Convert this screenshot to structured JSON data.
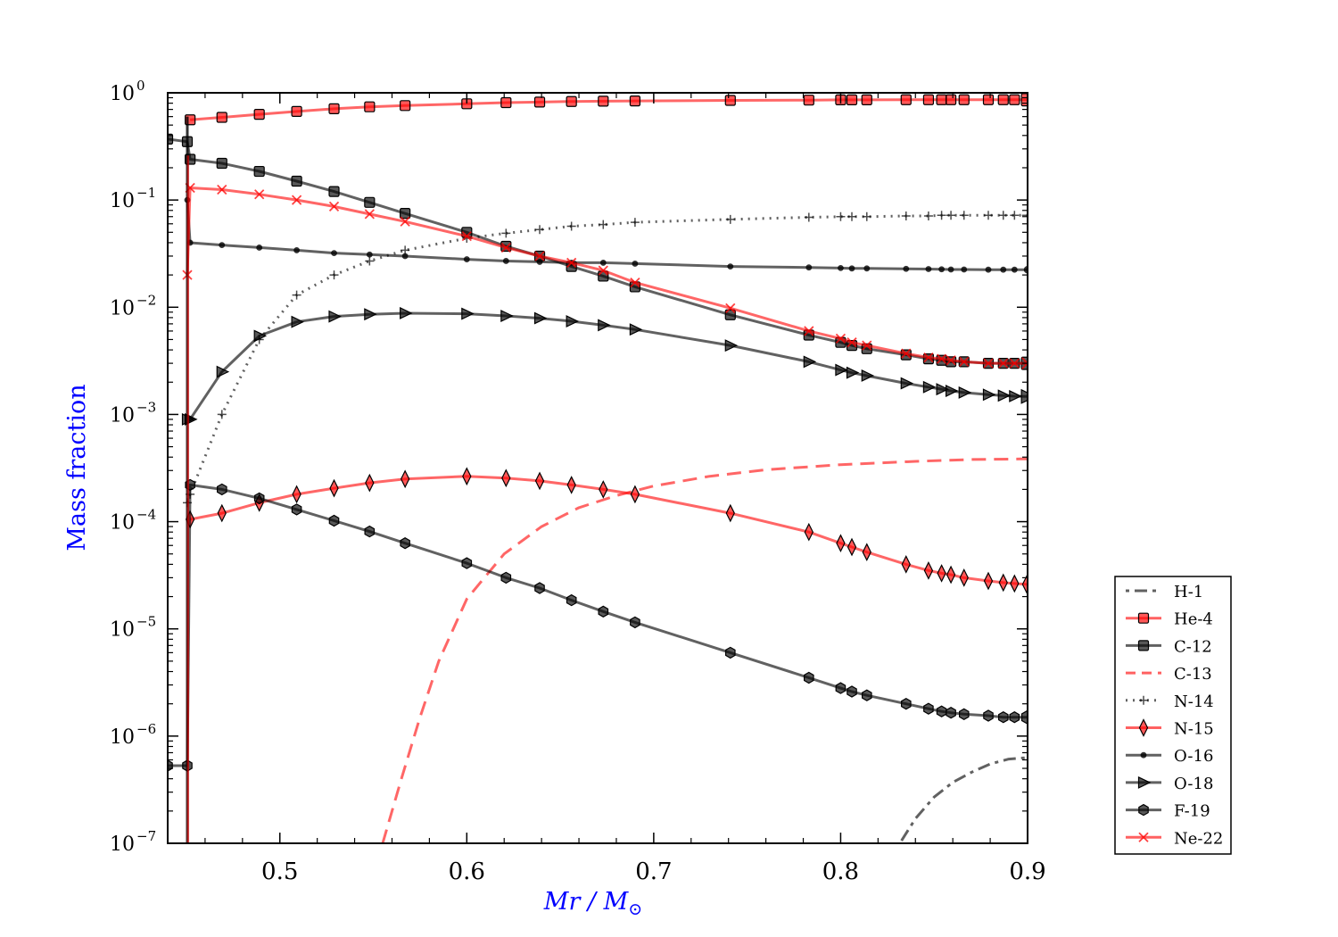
{
  "chart_data": {
    "type": "line",
    "xlabel": "Mr / M",
    "xlabel_sub": "⊙",
    "ylabel": "Mass fraction",
    "xlim": [
      0.44,
      0.9
    ],
    "ylim": [
      1e-07,
      1
    ],
    "yscale": "log",
    "grid": false,
    "legend_position": "outside right, bottom",
    "x_ticks": [
      0.5,
      0.6,
      0.7,
      0.8,
      0.9
    ],
    "x_tick_labels": [
      "0.5",
      "0.6",
      "0.7",
      "0.8",
      "0.9"
    ],
    "y_ticks": [
      1e-07,
      1e-06,
      1e-05,
      0.0001,
      0.001,
      0.01,
      0.1,
      1
    ],
    "y_tick_labels": [
      {
        "base": "10",
        "exp": "−7"
      },
      {
        "base": "10",
        "exp": "−6"
      },
      {
        "base": "10",
        "exp": "−5"
      },
      {
        "base": "10",
        "exp": "−4"
      },
      {
        "base": "10",
        "exp": "−3"
      },
      {
        "base": "10",
        "exp": "−2"
      },
      {
        "base": "10",
        "exp": "−1"
      },
      {
        "base": "10",
        "exp": "0"
      }
    ],
    "colors": {
      "red": "#ff0000",
      "black": "#000000",
      "axis_label": "#0000ff"
    },
    "marker_x": [
      0.4505,
      0.452,
      0.469,
      0.489,
      0.509,
      0.529,
      0.548,
      0.567,
      0.6,
      0.621,
      0.639,
      0.656,
      0.673,
      0.69,
      0.741,
      0.783,
      0.8,
      0.806,
      0.814,
      0.835,
      0.847,
      0.854,
      0.859,
      0.866,
      0.879,
      0.887,
      0.893,
      0.9
    ],
    "series": [
      {
        "name": "H-1",
        "color": "#000000",
        "dash": "4 6 14 6",
        "marker": "none",
        "x": [
          0.83,
          0.84,
          0.85,
          0.86,
          0.87,
          0.88,
          0.89,
          0.9
        ],
        "y": [
          9e-08,
          1.7e-07,
          2.7e-07,
          3.7e-07,
          4.6e-07,
          5.5e-07,
          6.1e-07,
          6.3e-07
        ]
      },
      {
        "name": "He-4",
        "color": "#ff0000",
        "dash": "",
        "marker": "square",
        "x": [
          0.452,
          0.469,
          0.489,
          0.509,
          0.529,
          0.548,
          0.567,
          0.6,
          0.621,
          0.639,
          0.656,
          0.673,
          0.69,
          0.741,
          0.783,
          0.8,
          0.806,
          0.814,
          0.835,
          0.847,
          0.854,
          0.859,
          0.866,
          0.879,
          0.887,
          0.893,
          0.9
        ],
        "y": [
          0.56,
          0.59,
          0.63,
          0.67,
          0.71,
          0.74,
          0.76,
          0.79,
          0.81,
          0.82,
          0.83,
          0.835,
          0.84,
          0.85,
          0.855,
          0.86,
          0.86,
          0.86,
          0.862,
          0.862,
          0.862,
          0.862,
          0.862,
          0.862,
          0.862,
          0.862,
          0.862
        ]
      },
      {
        "name": "C-12",
        "color": "#000000",
        "dash": "",
        "marker": "square",
        "x": [
          0.44,
          0.4505,
          0.452,
          0.469,
          0.489,
          0.509,
          0.529,
          0.548,
          0.567,
          0.6,
          0.621,
          0.639,
          0.656,
          0.673,
          0.69,
          0.741,
          0.783,
          0.8,
          0.806,
          0.814,
          0.835,
          0.847,
          0.854,
          0.859,
          0.866,
          0.879,
          0.887,
          0.893,
          0.9
        ],
        "y": [
          0.37,
          0.35,
          0.24,
          0.22,
          0.185,
          0.15,
          0.12,
          0.095,
          0.075,
          0.05,
          0.037,
          0.03,
          0.024,
          0.0195,
          0.0155,
          0.0085,
          0.0055,
          0.0047,
          0.0044,
          0.0041,
          0.0036,
          0.0033,
          0.0032,
          0.0031,
          0.0031,
          0.003,
          0.003,
          0.003,
          0.003
        ]
      },
      {
        "name": "C-13",
        "color": "#ff0000",
        "dash": "16 9",
        "marker": "none",
        "x": [
          0.555,
          0.565,
          0.575,
          0.585,
          0.6,
          0.62,
          0.64,
          0.66,
          0.68,
          0.7,
          0.73,
          0.76,
          0.8,
          0.84,
          0.87,
          0.9
        ],
        "y": [
          1e-07,
          4e-07,
          1.5e-06,
          5e-06,
          1.9e-05,
          5e-05,
          9e-05,
          0.000135,
          0.000175,
          0.000215,
          0.000265,
          0.000305,
          0.00034,
          0.000365,
          0.00038,
          0.000385
        ]
      },
      {
        "name": "N-14",
        "color": "#000000",
        "dash": "2 6",
        "marker": "plus",
        "x": [
          0.4505,
          0.452,
          0.469,
          0.489,
          0.509,
          0.529,
          0.548,
          0.567,
          0.6,
          0.621,
          0.639,
          0.656,
          0.673,
          0.69,
          0.741,
          0.783,
          0.8,
          0.806,
          0.814,
          0.835,
          0.847,
          0.854,
          0.859,
          0.866,
          0.879,
          0.887,
          0.893,
          0.9
        ],
        "y": [
          0.00015,
          0.00018,
          0.001,
          0.005,
          0.013,
          0.02,
          0.027,
          0.034,
          0.044,
          0.049,
          0.053,
          0.057,
          0.059,
          0.062,
          0.066,
          0.069,
          0.07,
          0.07,
          0.07,
          0.071,
          0.071,
          0.072,
          0.072,
          0.072,
          0.072,
          0.072,
          0.072,
          0.072
        ]
      },
      {
        "name": "N-15",
        "color": "#ff0000",
        "dash": "",
        "marker": "diamond",
        "x": [
          0.452,
          0.469,
          0.489,
          0.509,
          0.529,
          0.548,
          0.567,
          0.6,
          0.621,
          0.639,
          0.656,
          0.673,
          0.69,
          0.741,
          0.783,
          0.8,
          0.806,
          0.814,
          0.835,
          0.847,
          0.854,
          0.859,
          0.866,
          0.879,
          0.887,
          0.893,
          0.9
        ],
        "y": [
          0.000105,
          0.00012,
          0.00015,
          0.00018,
          0.000205,
          0.00023,
          0.00025,
          0.000265,
          0.000255,
          0.00024,
          0.00022,
          0.0002,
          0.00018,
          0.00012,
          8e-05,
          6.3e-05,
          5.8e-05,
          5.2e-05,
          4e-05,
          3.5e-05,
          3.3e-05,
          3.2e-05,
          3e-05,
          2.8e-05,
          2.7e-05,
          2.65e-05,
          2.6e-05
        ]
      },
      {
        "name": "O-16",
        "color": "#000000",
        "dash": "",
        "marker": "point",
        "x": [
          0.4505,
          0.452,
          0.469,
          0.489,
          0.509,
          0.529,
          0.548,
          0.567,
          0.6,
          0.621,
          0.639,
          0.656,
          0.673,
          0.69,
          0.741,
          0.783,
          0.8,
          0.806,
          0.814,
          0.835,
          0.847,
          0.854,
          0.859,
          0.866,
          0.879,
          0.887,
          0.893,
          0.9
        ],
        "y": [
          0.1,
          0.04,
          0.038,
          0.036,
          0.034,
          0.032,
          0.031,
          0.03,
          0.028,
          0.027,
          0.0265,
          0.026,
          0.026,
          0.0255,
          0.024,
          0.0235,
          0.0232,
          0.023,
          0.023,
          0.0228,
          0.0227,
          0.0226,
          0.0225,
          0.0225,
          0.0224,
          0.0224,
          0.0224,
          0.0224
        ]
      },
      {
        "name": "O-18",
        "color": "#000000",
        "dash": "",
        "marker": "triangle",
        "x": [
          0.4505,
          0.452,
          0.469,
          0.489,
          0.509,
          0.529,
          0.548,
          0.567,
          0.6,
          0.621,
          0.639,
          0.656,
          0.673,
          0.69,
          0.741,
          0.783,
          0.8,
          0.806,
          0.814,
          0.835,
          0.847,
          0.854,
          0.859,
          0.866,
          0.879,
          0.887,
          0.893,
          0.9
        ],
        "y": [
          0.0009,
          0.0009,
          0.0025,
          0.0054,
          0.0073,
          0.0082,
          0.0086,
          0.0088,
          0.0087,
          0.0083,
          0.0079,
          0.0074,
          0.0068,
          0.0062,
          0.0044,
          0.0031,
          0.0026,
          0.00245,
          0.0023,
          0.00195,
          0.0018,
          0.00172,
          0.00166,
          0.0016,
          0.00153,
          0.0015,
          0.00148,
          0.00147
        ]
      },
      {
        "name": "F-19",
        "color": "#000000",
        "dash": "",
        "marker": "hexagon",
        "x": [
          0.44,
          0.4505,
          0.452,
          0.469,
          0.489,
          0.509,
          0.529,
          0.548,
          0.567,
          0.6,
          0.621,
          0.639,
          0.656,
          0.673,
          0.69,
          0.741,
          0.783,
          0.8,
          0.806,
          0.814,
          0.835,
          0.847,
          0.854,
          0.859,
          0.866,
          0.879,
          0.887,
          0.893,
          0.9
        ],
        "y": [
          5.3e-07,
          5.3e-07,
          0.00022,
          0.0002,
          0.000165,
          0.00013,
          0.000102,
          8.1e-05,
          6.3e-05,
          4.1e-05,
          3e-05,
          2.4e-05,
          1.85e-05,
          1.45e-05,
          1.15e-05,
          6e-06,
          3.5e-06,
          2.8e-06,
          2.6e-06,
          2.4e-06,
          2e-06,
          1.8e-06,
          1.7e-06,
          1.65e-06,
          1.6e-06,
          1.55e-06,
          1.5e-06,
          1.5e-06,
          1.5e-06
        ]
      },
      {
        "name": "Ne-22",
        "color": "#ff0000",
        "dash": "",
        "marker": "x",
        "x": [
          0.4505,
          0.452,
          0.469,
          0.489,
          0.509,
          0.529,
          0.548,
          0.567,
          0.6,
          0.621,
          0.639,
          0.656,
          0.673,
          0.69,
          0.741,
          0.783,
          0.8,
          0.806,
          0.814,
          0.835,
          0.847,
          0.854,
          0.859,
          0.866,
          0.879,
          0.887,
          0.893,
          0.9
        ],
        "y": [
          0.02,
          0.13,
          0.125,
          0.113,
          0.1,
          0.087,
          0.074,
          0.063,
          0.046,
          0.036,
          0.03,
          0.026,
          0.022,
          0.017,
          0.0098,
          0.006,
          0.0051,
          0.0047,
          0.0044,
          0.0037,
          0.0034,
          0.0033,
          0.0032,
          0.0031,
          0.003,
          0.003,
          0.003,
          0.003
        ]
      }
    ]
  }
}
